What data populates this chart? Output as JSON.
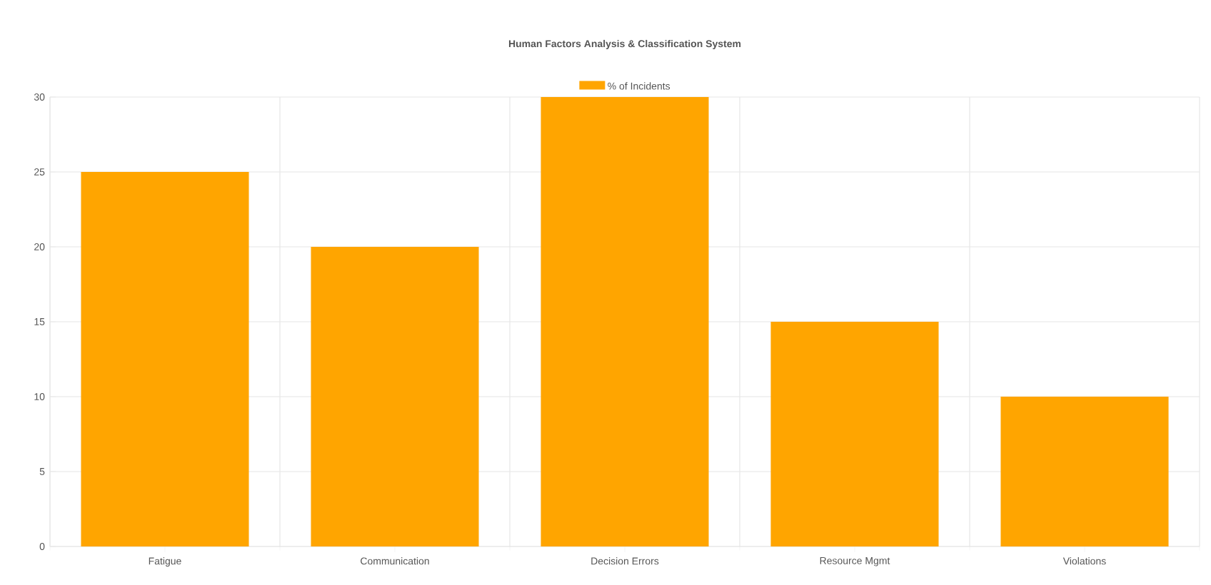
{
  "chart_data": {
    "type": "bar",
    "title": "Human Factors Analysis & Classification System",
    "categories": [
      "Fatigue",
      "Communication",
      "Decision Errors",
      "Resource Mgmt",
      "Violations"
    ],
    "series": [
      {
        "name": "% of Incidents",
        "color": "#ffa500",
        "values": [
          25,
          20,
          30,
          15,
          10
        ]
      }
    ],
    "ylim": [
      0,
      30
    ],
    "yticks": [
      0,
      5,
      10,
      15,
      20,
      25,
      30
    ],
    "grid": true,
    "legend": "top"
  }
}
